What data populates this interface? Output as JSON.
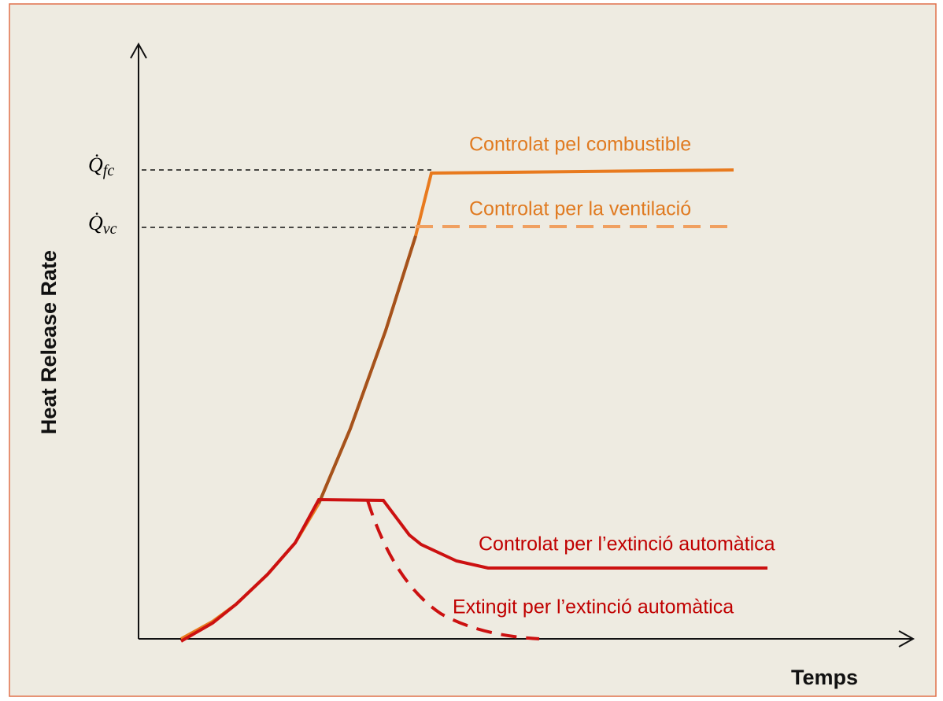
{
  "axes": {
    "y_label": "Heat Release Rate",
    "x_label": "Temps"
  },
  "levels": [
    {
      "symbol": "Q̇",
      "subscript": "fc"
    },
    {
      "symbol": "Q̇",
      "subscript": "vc"
    }
  ],
  "curves": [
    {
      "label": "Controlat pel combustible"
    },
    {
      "label": "Controlat per la ventilació"
    },
    {
      "label": "Controlat per l’extinció automàtica"
    },
    {
      "label": "Extingit per l’extinció automàtica"
    }
  ]
}
